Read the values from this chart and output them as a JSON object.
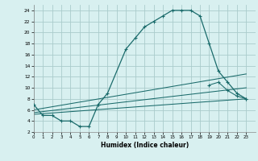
{
  "xlabel": "Humidex (Indice chaleur)",
  "bg_color": "#d8f0f0",
  "grid_color": "#aacccc",
  "line_color": "#1a6b6b",
  "xlim": [
    0,
    24
  ],
  "ylim": [
    2,
    25
  ],
  "xticks": [
    0,
    1,
    2,
    3,
    4,
    5,
    6,
    7,
    8,
    9,
    10,
    11,
    12,
    13,
    14,
    15,
    16,
    17,
    18,
    19,
    20,
    21,
    22,
    23
  ],
  "yticks": [
    2,
    4,
    6,
    8,
    10,
    12,
    14,
    16,
    18,
    20,
    22,
    24
  ],
  "lower_x": [
    0,
    1,
    2,
    3,
    4,
    5,
    6,
    7
  ],
  "lower_y": [
    7,
    5,
    5,
    4,
    4,
    3,
    3,
    7
  ],
  "upper_x": [
    7,
    8,
    10,
    11,
    12,
    13,
    14,
    15,
    16,
    17,
    18,
    19,
    20,
    21,
    22,
    23
  ],
  "upper_y": [
    7,
    9,
    17,
    19,
    21,
    22,
    23,
    24,
    24,
    24,
    23,
    18,
    13,
    11,
    9,
    8
  ],
  "line1_x": [
    0,
    23
  ],
  "line1_y": [
    5.2,
    8.0
  ],
  "line2_x": [
    0,
    23
  ],
  "line2_y": [
    5.5,
    10.0
  ],
  "line3_x": [
    0,
    23
  ],
  "line3_y": [
    6.0,
    12.5
  ],
  "extra_curve_x": [
    19,
    20,
    21,
    22,
    23
  ],
  "extra_curve_y": [
    10.5,
    11.0,
    9.5,
    8.5,
    8.0
  ]
}
